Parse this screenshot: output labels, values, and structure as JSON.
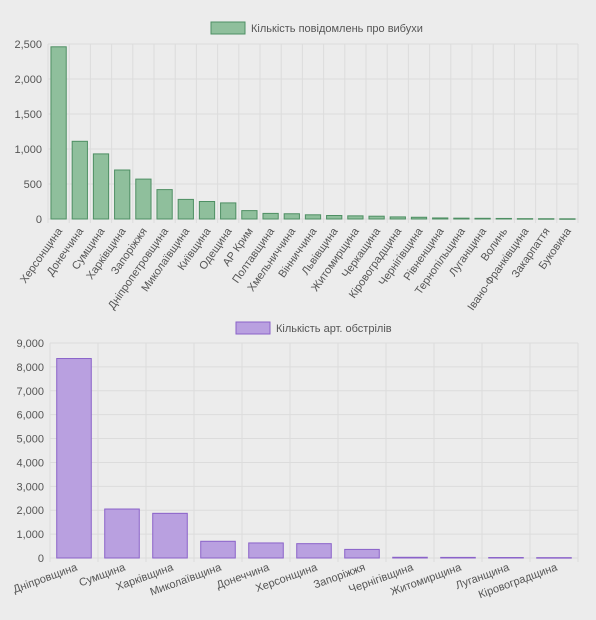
{
  "colors": {
    "background": "#ececec",
    "grid": "#dcdcdc",
    "axis_text": "#555555",
    "series1_fill": "#8fbf9c",
    "series1_stroke": "#4e8f63",
    "series2_fill": "#b9a0e0",
    "series2_stroke": "#8a62c9"
  },
  "chart_data": [
    {
      "type": "bar",
      "legend_position": "top-center",
      "grid": true,
      "ylim": [
        0,
        2500
      ],
      "yticks": [
        "0",
        "500",
        "1,000",
        "1,500",
        "2,000",
        "2,500"
      ],
      "series": [
        {
          "name": "Кількість повідомлень про вибухи",
          "values": [
            2460,
            1110,
            930,
            700,
            570,
            420,
            280,
            250,
            230,
            120,
            80,
            75,
            60,
            50,
            45,
            40,
            30,
            25,
            15,
            12,
            10,
            8,
            5,
            4,
            3
          ]
        }
      ],
      "categories": [
        "Херсонщина",
        "Донеччина",
        "Сумщина",
        "Харківщина",
        "Запоріжжя",
        "Дніпропетровщина",
        "Миколаївщина",
        "Київщина",
        "Одещина",
        "АР Крим",
        "Полтавщина",
        "Хмельниччина",
        "Вінниччина",
        "Львівщина",
        "Житомирщина",
        "Черкащина",
        "Кіровоградщина",
        "Чернігівщина",
        "Рівненщина",
        "Тернопільщина",
        "Луганщина",
        "Волинь",
        "Івано-Франківщина",
        "Закарпаття",
        "Буковина"
      ]
    },
    {
      "type": "bar",
      "legend_position": "top-center",
      "grid": true,
      "ylim": [
        0,
        9000
      ],
      "yticks": [
        "0",
        "1,000",
        "2,000",
        "3,000",
        "4,000",
        "5,000",
        "6,000",
        "7,000",
        "8,000",
        "9,000"
      ],
      "series": [
        {
          "name": "Кількість арт. обстрілів",
          "values": [
            8350,
            2050,
            1870,
            700,
            630,
            600,
            360,
            30,
            25,
            20,
            15
          ]
        }
      ],
      "categories": [
        "Дніпровщина",
        "Сумщина",
        "Харківщина",
        "Миколаївщина",
        "Донеччина",
        "Херсонщина",
        "Запоріжжя",
        "Чернігівщина",
        "Житомирщина",
        "Луганщина",
        "Кіровоградщина"
      ]
    }
  ]
}
